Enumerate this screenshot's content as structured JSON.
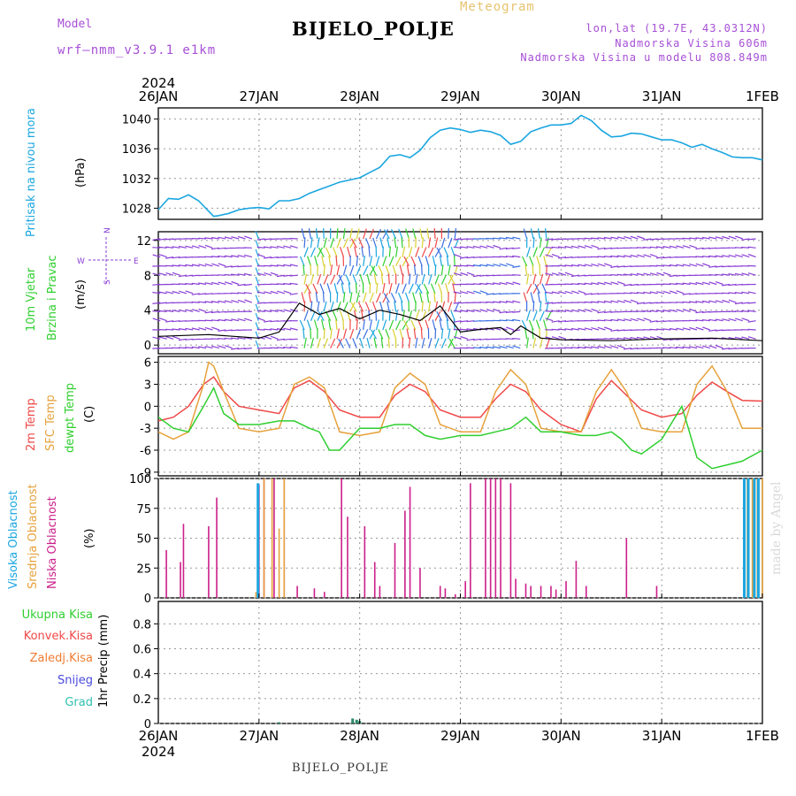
{
  "header": {
    "station": "BIJELO_POLJE",
    "meteogram_label": "Meteogram",
    "model_label": "Model",
    "model_version": "wrf—nmm_v3.9.1  e1km",
    "lonlat": "lon,lat (19.7E, 43.0312N)",
    "elevation": "Nadmorska Visina 606m",
    "model_elevation": "Nadmorska Visina u modelu 808.849m",
    "footer_station": "BIJELO_POLJE",
    "credit": "made by Angel"
  },
  "colors": {
    "pressure": "#1ba6e0",
    "temp2m": "#f04848",
    "sfc_temp": "#e6a23c",
    "dewpt": "#2fcf2f",
    "high_cloud": "#1ba6e0",
    "mid_cloud": "#e6a23c",
    "low_cloud": "#cc1f8a",
    "purple": "#8a3fd6",
    "green_label": "#2fcf2f"
  },
  "chart_data": [
    {
      "type": "line",
      "name": "pressure",
      "x_axis": {
        "year": "2024",
        "ticks": [
          "26JAN",
          "27JAN",
          "28JAN",
          "29JAN",
          "30JAN",
          "31JAN",
          "1FEB"
        ]
      },
      "ylabel_main": "Pritisak na nivou mora",
      "ylabel_unit": "(hPa)",
      "yticks": [
        1028,
        1032,
        1036,
        1040
      ],
      "ylim": [
        1026.5,
        1041.5
      ],
      "x_days": [
        0,
        0.1,
        0.2,
        0.3,
        0.4,
        0.5,
        0.55,
        0.6,
        0.7,
        0.8,
        0.9,
        1.0,
        1.1,
        1.2,
        1.3,
        1.4,
        1.5,
        1.6,
        1.7,
        1.8,
        1.9,
        2.0,
        2.1,
        2.2,
        2.3,
        2.4,
        2.5,
        2.6,
        2.7,
        2.8,
        2.9,
        3.0,
        3.1,
        3.2,
        3.3,
        3.4,
        3.5,
        3.6,
        3.7,
        3.8,
        3.9,
        4.0,
        4.1,
        4.2,
        4.3,
        4.4,
        4.5,
        4.6,
        4.7,
        4.8,
        4.9,
        5.0,
        5.1,
        5.2,
        5.3,
        5.4,
        5.5,
        5.6,
        5.7,
        5.8,
        5.9,
        6.0
      ],
      "values": [
        1027.8,
        1029.3,
        1029.2,
        1029.8,
        1029.0,
        1027.6,
        1026.9,
        1027.0,
        1027.3,
        1027.8,
        1028.0,
        1028.1,
        1027.9,
        1029.0,
        1029.0,
        1029.3,
        1030.0,
        1030.5,
        1031.0,
        1031.5,
        1031.8,
        1032.1,
        1032.8,
        1033.5,
        1035.0,
        1035.2,
        1034.8,
        1035.8,
        1037.5,
        1038.5,
        1038.8,
        1038.6,
        1038.2,
        1038.5,
        1038.3,
        1037.8,
        1036.6,
        1037.0,
        1038.3,
        1038.8,
        1039.2,
        1039.2,
        1039.4,
        1040.5,
        1039.8,
        1038.5,
        1037.6,
        1037.7,
        1038.1,
        1038.0,
        1037.6,
        1037.2,
        1037.2,
        1036.8,
        1036.2,
        1036.6,
        1036.0,
        1035.5,
        1034.9,
        1034.8,
        1034.8,
        1034.5
      ]
    },
    {
      "type": "line",
      "name": "wind",
      "ylabel_main": "10m Vjetar",
      "ylabel_sub": "Brzina i Pravac",
      "ylabel_unit": "(m/s)",
      "compass": {
        "n": "N",
        "s": "S",
        "w": "W",
        "e": "E"
      },
      "yticks": [
        0,
        4,
        8,
        12
      ],
      "ylim": [
        -1,
        13
      ],
      "x_days": [
        0,
        0.5,
        1.0,
        1.2,
        1.4,
        1.6,
        1.8,
        2.0,
        2.2,
        2.4,
        2.6,
        2.8,
        3.0,
        3.2,
        3.4,
        3.5,
        3.6,
        3.8,
        4.0,
        4.5,
        5.0,
        5.5,
        6.0
      ],
      "speed": [
        1.0,
        1.2,
        0.8,
        1.5,
        4.8,
        3.5,
        4.2,
        3.0,
        4.0,
        3.5,
        2.8,
        4.5,
        1.5,
        1.8,
        2.0,
        1.2,
        2.2,
        0.8,
        0.6,
        0.5,
        0.7,
        0.8,
        0.5
      ]
    },
    {
      "type": "line",
      "name": "temperature",
      "ylabel_series": [
        "2m Temp",
        "SFC Temp",
        "dewpt Temp"
      ],
      "ylabel_unit": "(C)",
      "yticks": [
        -9,
        -6,
        -3,
        0,
        3,
        6
      ],
      "ylim": [
        -9.5,
        6.8
      ],
      "series": [
        {
          "name": "2m Temp",
          "x_days": [
            0,
            0.15,
            0.3,
            0.45,
            0.55,
            0.65,
            0.8,
            1.0,
            1.2,
            1.35,
            1.5,
            1.65,
            1.8,
            2.0,
            2.2,
            2.35,
            2.5,
            2.65,
            2.8,
            3.0,
            3.2,
            3.35,
            3.5,
            3.65,
            3.8,
            4.0,
            4.2,
            4.35,
            4.5,
            4.65,
            4.8,
            5.0,
            5.2,
            5.35,
            5.5,
            5.65,
            5.8,
            6.0
          ],
          "values": [
            -2.0,
            -1.5,
            0.0,
            3.0,
            4.0,
            2.0,
            0.0,
            -0.5,
            -1.0,
            2.5,
            3.5,
            2.0,
            -0.5,
            -1.5,
            -1.5,
            1.5,
            3.0,
            2.0,
            -0.5,
            -1.5,
            -1.5,
            1.0,
            3.0,
            2.0,
            -0.5,
            -2.5,
            -3.5,
            1.0,
            3.5,
            1.5,
            -0.5,
            -1.5,
            -1.0,
            1.5,
            3.3,
            2.0,
            0.8,
            0.7
          ]
        },
        {
          "name": "SFC Temp",
          "x_days": [
            0,
            0.15,
            0.3,
            0.45,
            0.5,
            0.55,
            0.65,
            0.8,
            1.0,
            1.2,
            1.35,
            1.5,
            1.65,
            1.8,
            2.0,
            2.2,
            2.35,
            2.5,
            2.65,
            2.8,
            3.0,
            3.2,
            3.35,
            3.5,
            3.65,
            3.8,
            4.0,
            4.2,
            4.35,
            4.5,
            4.65,
            4.8,
            5.0,
            5.2,
            5.35,
            5.5,
            5.65,
            5.8,
            6.0
          ],
          "values": [
            -3.5,
            -4.5,
            -3.5,
            3.0,
            6.0,
            5.5,
            2.0,
            -3.0,
            -3.5,
            -3.0,
            3.0,
            4.0,
            2.5,
            -3.5,
            -4.0,
            -3.5,
            2.5,
            4.5,
            3.0,
            -2.5,
            -3.5,
            -3.5,
            2.0,
            5.0,
            3.0,
            -3.0,
            -3.5,
            -3.5,
            2.0,
            5.0,
            2.0,
            -3.0,
            -3.5,
            -3.5,
            3.0,
            5.5,
            2.0,
            -3.0,
            -3.0
          ]
        },
        {
          "name": "dewpt Temp",
          "x_days": [
            0,
            0.15,
            0.3,
            0.45,
            0.55,
            0.65,
            0.8,
            1.0,
            1.2,
            1.35,
            1.5,
            1.6,
            1.7,
            1.8,
            2.0,
            2.2,
            2.35,
            2.5,
            2.65,
            2.8,
            3.0,
            3.2,
            3.35,
            3.5,
            3.65,
            3.8,
            4.0,
            4.2,
            4.35,
            4.5,
            4.6,
            4.7,
            4.8,
            5.0,
            5.2,
            5.35,
            5.5,
            5.65,
            5.8,
            6.0
          ],
          "values": [
            -1.5,
            -3.0,
            -3.5,
            0.0,
            2.5,
            -1.0,
            -2.5,
            -2.5,
            -2.0,
            -2.0,
            -3.0,
            -3.5,
            -6.0,
            -6.0,
            -3.0,
            -3.0,
            -2.5,
            -2.5,
            -4.0,
            -4.5,
            -4.0,
            -4.0,
            -3.5,
            -3.0,
            -1.5,
            -3.5,
            -3.5,
            -4.0,
            -4.0,
            -3.5,
            -4.5,
            -6.0,
            -6.5,
            -4.5,
            0.0,
            -7.0,
            -8.5,
            -8.0,
            -7.5,
            -6.0
          ]
        }
      ]
    },
    {
      "type": "bar",
      "name": "cloud",
      "ylabel_series": [
        "Visoka Oblacnost",
        "Srednja Oblacnost",
        "Niska Oblacnost"
      ],
      "ylabel_unit": "(%)",
      "yticks": [
        0,
        25,
        50,
        75,
        100
      ],
      "ylim": [
        0,
        100
      ],
      "series": [
        {
          "name": "Niska Oblacnost",
          "x_days": [
            0.08,
            0.22,
            0.25,
            0.5,
            0.58,
            1.0,
            1.05,
            1.15,
            1.25,
            1.38,
            1.55,
            1.65,
            1.82,
            1.88,
            2.05,
            2.15,
            2.2,
            2.35,
            2.45,
            2.5,
            2.6,
            2.8,
            2.85,
            2.95,
            3.05,
            3.1,
            3.25,
            3.3,
            3.35,
            3.4,
            3.5,
            3.55,
            3.65,
            3.7,
            3.8,
            3.9,
            3.95,
            4.05,
            4.15,
            4.25,
            4.65,
            4.95
          ],
          "values": [
            40,
            30,
            62,
            60,
            84,
            95,
            100,
            100,
            100,
            10,
            8,
            5,
            100,
            68,
            60,
            30,
            10,
            46,
            73,
            93,
            25,
            10,
            8,
            3,
            14,
            96,
            100,
            100,
            100,
            100,
            96,
            16,
            12,
            10,
            10,
            10,
            7,
            14,
            31,
            10,
            50,
            10
          ]
        },
        {
          "name": "Srednja Oblacnost",
          "x_days": [
            0.97,
            1.05,
            1.13,
            1.2,
            1.25,
            5.85,
            5.9,
            5.95,
            6.0
          ],
          "values": [
            5,
            100,
            100,
            58,
            100,
            100,
            100,
            100,
            100
          ]
        },
        {
          "name": "Visoka Oblacnost",
          "x_days": [
            0.99,
            5.82,
            5.86,
            5.92,
            5.96
          ],
          "values": [
            96,
            100,
            100,
            100,
            100
          ]
        }
      ]
    },
    {
      "type": "bar",
      "name": "precipitation",
      "ylabel_main": "1hr Precip (mm)",
      "legend": [
        "Ukupna Kisa",
        "Konvek.Kisa",
        "Zaledj.Kisa",
        "Snijeg",
        "Grad"
      ],
      "yticks": [
        0,
        0.2,
        0.4,
        0.6,
        0.8
      ],
      "ytick_labels": [
        "0",
        "0.2",
        "0.4",
        "0.6",
        "0.8"
      ],
      "ylim": [
        0,
        0.98
      ],
      "x_days": [
        1.2,
        1.93,
        1.97,
        2.0
      ],
      "values": [
        0.01,
        0.04,
        0.03,
        0.02
      ]
    }
  ]
}
